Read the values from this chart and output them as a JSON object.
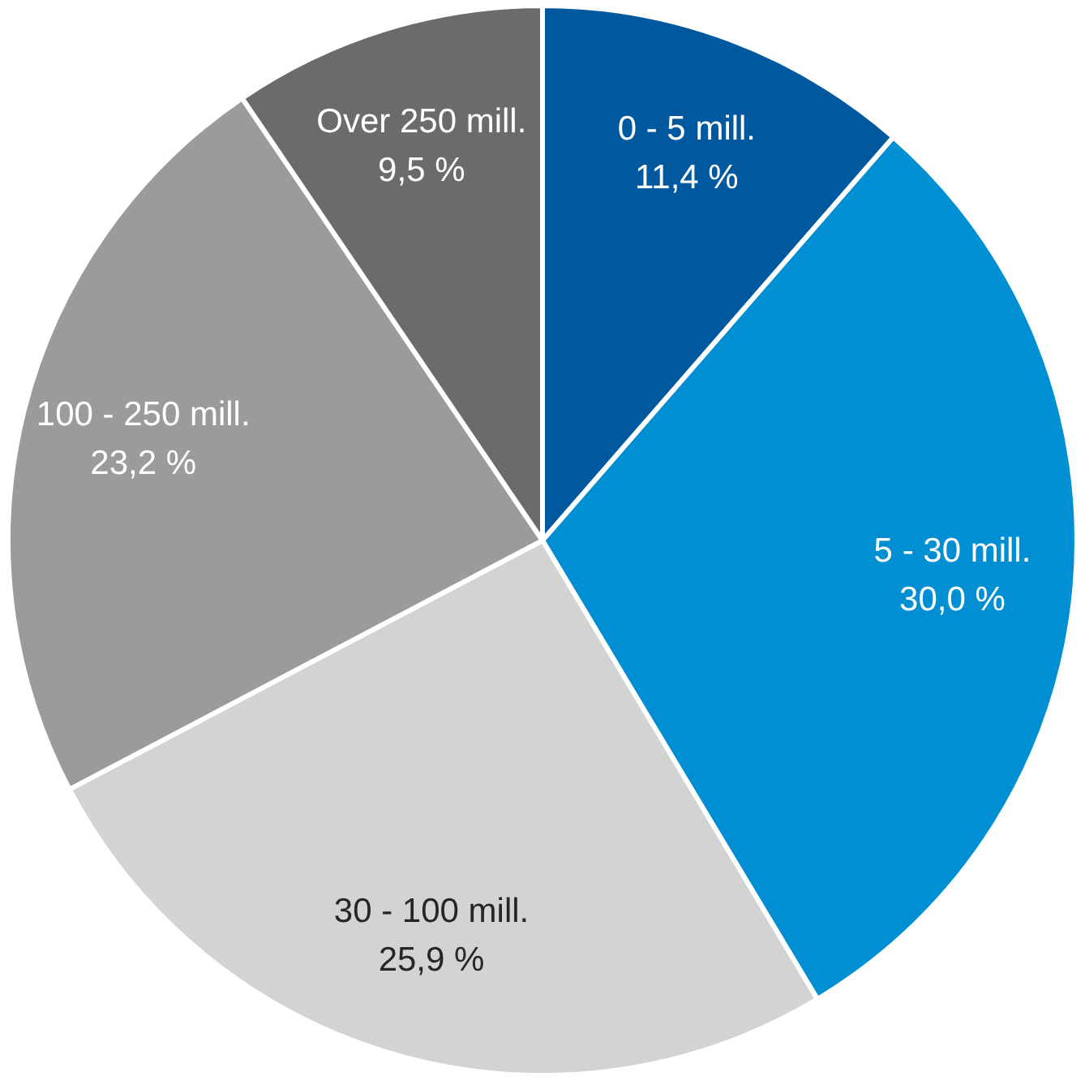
{
  "chart_data": {
    "type": "pie",
    "categories": [
      "0 - 5 mill.",
      "5 - 30 mill.",
      "30 - 100 mill.",
      "100 - 250 mill.",
      "Over 250 mill."
    ],
    "values": [
      11.4,
      30.0,
      25.9,
      23.2,
      9.5
    ],
    "colors": [
      "#00589e",
      "#008fd3",
      "#d3d3d3",
      "#9b9b9b",
      "#6b6b6b"
    ],
    "value_labels": [
      "11,4 %",
      "30,0 %",
      "25,9 %",
      "23,2 %",
      "9,5 %"
    ],
    "legend": false
  }
}
